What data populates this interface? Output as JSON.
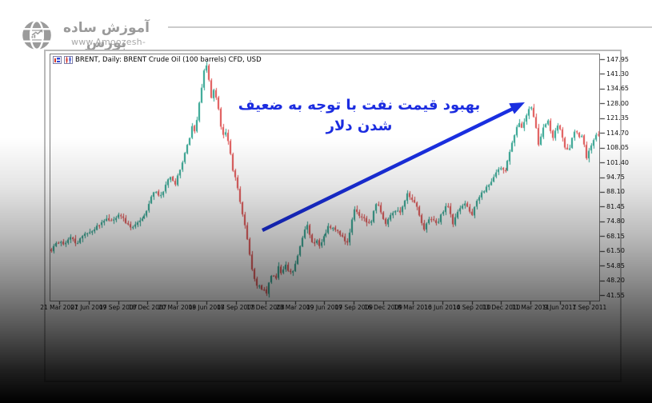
{
  "brand": {
    "name_fa": "آموزش ساده بورس",
    "url": "www.Amoozesh-Boors.com",
    "color": "#9b9b9b",
    "logo_icon": "globe-chart-icon"
  },
  "annotation": {
    "text_fa": "بهبود قیمت نفت با توجه به ضعیف شدن دلار",
    "color": "#1b2ce0",
    "arrow_color": "#1a2fe0",
    "arrow_icon": "trend-up-arrow"
  },
  "chart_data": {
    "type": "candlestick",
    "title": "BRENT, Daily:  BRENT Crude Oil (100 barrels) CFD, USD",
    "symbol": "BRENT",
    "timeframe": "Daily",
    "grid": "off",
    "legend": "none",
    "up_color": "#2aa18d",
    "down_color": "#de4f4f",
    "title_icons": [
      "chart-window-icon",
      "candlestick-icon"
    ],
    "y_axis": {
      "min": 41.55,
      "max": 147.95,
      "ticks": [
        "147.95",
        "141.30",
        "134.65",
        "128.00",
        "121.35",
        "114.70",
        "108.05",
        "101.40",
        "94.75",
        "88.10",
        "81.45",
        "74.80",
        "68.15",
        "61.50",
        "54.85",
        "48.20",
        "41.55"
      ]
    },
    "x_axis": {
      "labels": [
        "21 Mar 2007",
        "21 Jun 2007",
        "19 Sep 2007",
        "18 Dec 2007",
        "20 Mar 2008",
        "19 Jun 2008",
        "17 Sep 2008",
        "17 Dec 2008",
        "23 Mar 2009",
        "19 Jun 2009",
        "17 Sep 2009",
        "16 Dec 2009",
        "18 Mar 2010",
        "16 Jun 2010",
        "14 Sep 2010",
        "13 Dec 2010",
        "11 Mar 2011",
        "9 Jun 2011",
        "7 Sep 2011"
      ]
    },
    "price_path": [
      [
        0.0,
        62
      ],
      [
        0.0102,
        66
      ],
      [
        0.0218,
        64
      ],
      [
        0.0335,
        67.5
      ],
      [
        0.0466,
        65
      ],
      [
        0.0597,
        68.5
      ],
      [
        0.0728,
        70
      ],
      [
        0.0859,
        73
      ],
      [
        0.099,
        76.5
      ],
      [
        0.1121,
        75
      ],
      [
        0.1237,
        78
      ],
      [
        0.1368,
        74
      ],
      [
        0.147,
        71.5
      ],
      [
        0.1587,
        74.5
      ],
      [
        0.1703,
        77
      ],
      [
        0.179,
        83
      ],
      [
        0.1892,
        89
      ],
      [
        0.1994,
        86
      ],
      [
        0.2096,
        91
      ],
      [
        0.2183,
        95.5
      ],
      [
        0.2271,
        92
      ],
      [
        0.2344,
        97
      ],
      [
        0.2431,
        104
      ],
      [
        0.2518,
        111
      ],
      [
        0.2576,
        118
      ],
      [
        0.2634,
        115
      ],
      [
        0.2693,
        126
      ],
      [
        0.2751,
        135
      ],
      [
        0.2824,
        147
      ],
      [
        0.2882,
        139
      ],
      [
        0.2926,
        131
      ],
      [
        0.2984,
        135
      ],
      [
        0.3042,
        127
      ],
      [
        0.31,
        118
      ],
      [
        0.3159,
        113
      ],
      [
        0.3202,
        116
      ],
      [
        0.326,
        107
      ],
      [
        0.3319,
        98
      ],
      [
        0.3377,
        94
      ],
      [
        0.3435,
        86
      ],
      [
        0.3493,
        78
      ],
      [
        0.3552,
        71
      ],
      [
        0.361,
        62
      ],
      [
        0.3654,
        55
      ],
      [
        0.3697,
        50
      ],
      [
        0.3741,
        45
      ],
      [
        0.3785,
        48
      ],
      [
        0.3828,
        43
      ],
      [
        0.3872,
        46
      ],
      [
        0.3915,
        41.6
      ],
      [
        0.3974,
        47
      ],
      [
        0.4032,
        51
      ],
      [
        0.409,
        48
      ],
      [
        0.4148,
        54
      ],
      [
        0.4207,
        50
      ],
      [
        0.4265,
        56
      ],
      [
        0.4323,
        53
      ],
      [
        0.4381,
        51
      ],
      [
        0.4439,
        55
      ],
      [
        0.4498,
        60
      ],
      [
        0.4556,
        65
      ],
      [
        0.4614,
        71
      ],
      [
        0.4672,
        73
      ],
      [
        0.4731,
        68
      ],
      [
        0.4789,
        64
      ],
      [
        0.4847,
        66
      ],
      [
        0.4905,
        63
      ],
      [
        0.4963,
        67
      ],
      [
        0.5022,
        70
      ],
      [
        0.508,
        73
      ],
      [
        0.5138,
        71
      ],
      [
        0.5197,
        71.5
      ],
      [
        0.5298,
        68.5
      ],
      [
        0.5415,
        65
      ],
      [
        0.5546,
        80
      ],
      [
        0.5677,
        77
      ],
      [
        0.5822,
        73
      ],
      [
        0.5953,
        84
      ],
      [
        0.6099,
        73.5
      ],
      [
        0.6288,
        80
      ],
      [
        0.639,
        79
      ],
      [
        0.6506,
        87
      ],
      [
        0.6696,
        81
      ],
      [
        0.6798,
        70.5
      ],
      [
        0.6914,
        77
      ],
      [
        0.7045,
        73.5
      ],
      [
        0.7132,
        78
      ],
      [
        0.7234,
        83.5
      ],
      [
        0.7336,
        73.5
      ],
      [
        0.7452,
        80
      ],
      [
        0.7569,
        83.5
      ],
      [
        0.7671,
        77.5
      ],
      [
        0.7816,
        86
      ],
      [
        0.7962,
        91
      ],
      [
        0.8078,
        94
      ],
      [
        0.818,
        99
      ],
      [
        0.8282,
        97
      ],
      [
        0.837,
        104
      ],
      [
        0.8471,
        114
      ],
      [
        0.8544,
        120
      ],
      [
        0.8617,
        117
      ],
      [
        0.869,
        123
      ],
      [
        0.8763,
        127.5
      ],
      [
        0.8836,
        121
      ],
      [
        0.8908,
        110
      ],
      [
        0.8981,
        116
      ],
      [
        0.9083,
        120
      ],
      [
        0.917,
        112.5
      ],
      [
        0.9272,
        119.5
      ],
      [
        0.9389,
        107.5
      ],
      [
        0.9461,
        106
      ],
      [
        0.9563,
        116
      ],
      [
        0.9651,
        113
      ],
      [
        0.9709,
        112.5
      ],
      [
        0.9782,
        103
      ],
      [
        0.9855,
        109
      ],
      [
        0.9927,
        113
      ],
      [
        1.0,
        114
      ]
    ]
  }
}
